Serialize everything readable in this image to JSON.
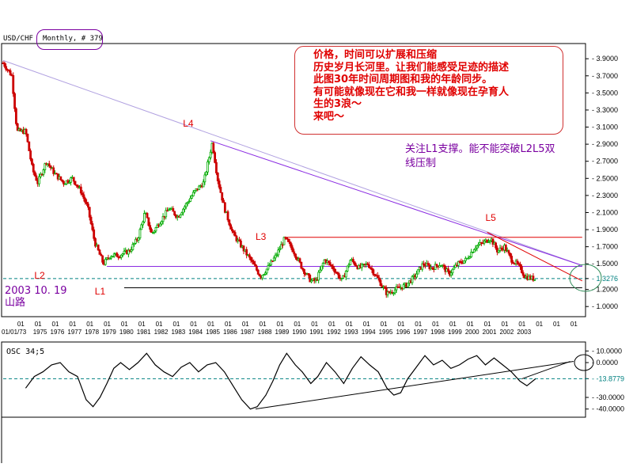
{
  "header": {
    "symbol": "USD/CHF",
    "period": "Monthly, # 379"
  },
  "annotations": {
    "note": "价格，时间可以扩展和压缩\n历史岁月长河里。让我们能感受足迹的描述\n此图30年时间周期图和我的年龄同步。\n有可能就像现在它和我一样就像现在孕育人\n生的3浪～\n来吧～",
    "l1_note": "关注L1支撑。能不能突破L2L5双\n线压制",
    "date_note": "2003 10. 19\n山路",
    "line_labels": [
      "L4",
      "L3",
      "L2",
      "L1",
      "L5"
    ]
  },
  "colors": {
    "candle_up": "#00aa00",
    "candle_down": "#cc0000",
    "trend_line": "#8a2be2",
    "support_line": "#000000",
    "resist_line": "#e00000",
    "dashed_line": "#008080",
    "note_text": "#e00000",
    "purple_text": "#7a00a0",
    "circle": "#2e8b57"
  },
  "chart_data": [
    {
      "type": "candlestick",
      "title": "USD/CHF Monthly",
      "x_first_label": "01/01/73",
      "x_tick_prefix": "01",
      "x_years": [
        "1975",
        "1976",
        "1977",
        "1978",
        "1979",
        "1980",
        "1981",
        "1982",
        "1983",
        "1984",
        "1985",
        "1986",
        "1987",
        "1988",
        "1989",
        "1990",
        "1991",
        "1992",
        "1993",
        "1994",
        "1995",
        "1996",
        "1997",
        "1998",
        "1999",
        "2000",
        "2001",
        "2002",
        "2003"
      ],
      "y_ticks": [
        "3.9000",
        "3.7000",
        "3.5000",
        "3.3000",
        "3.1000",
        "2.9000",
        "2.7000",
        "2.5000",
        "2.3000",
        "2.1000",
        "1.9000",
        "1.7000",
        "1.5000",
        "1.3276",
        "1.2000",
        "1.0000"
      ],
      "ylim": [
        0.9,
        4.05
      ],
      "current_price": "1.3276",
      "price_path": [
        [
          1973.0,
          3.85
        ],
        [
          1973.5,
          3.7
        ],
        [
          1973.8,
          3.05
        ],
        [
          1974.3,
          3.05
        ],
        [
          1974.7,
          2.6
        ],
        [
          1975.0,
          2.45
        ],
        [
          1975.5,
          2.7
        ],
        [
          1976.0,
          2.55
        ],
        [
          1976.5,
          2.45
        ],
        [
          1977.0,
          2.5
        ],
        [
          1977.5,
          2.35
        ],
        [
          1977.9,
          2.15
        ],
        [
          1978.3,
          1.75
        ],
        [
          1978.8,
          1.5
        ],
        [
          1979.2,
          1.6
        ],
        [
          1979.7,
          1.6
        ],
        [
          1980.3,
          1.65
        ],
        [
          1980.8,
          1.8
        ],
        [
          1981.2,
          2.1
        ],
        [
          1981.6,
          1.85
        ],
        [
          1982.1,
          2.0
        ],
        [
          1982.6,
          2.15
        ],
        [
          1983.1,
          2.05
        ],
        [
          1983.6,
          2.2
        ],
        [
          1984.1,
          2.35
        ],
        [
          1984.6,
          2.45
        ],
        [
          1985.1,
          2.92
        ],
        [
          1985.4,
          2.5
        ],
        [
          1985.8,
          2.15
        ],
        [
          1986.3,
          1.85
        ],
        [
          1986.8,
          1.7
        ],
        [
          1987.3,
          1.55
        ],
        [
          1987.9,
          1.35
        ],
        [
          1988.3,
          1.45
        ],
        [
          1988.8,
          1.6
        ],
        [
          1989.3,
          1.8
        ],
        [
          1989.8,
          1.65
        ],
        [
          1990.3,
          1.45
        ],
        [
          1990.8,
          1.3
        ],
        [
          1991.1,
          1.3
        ],
        [
          1991.6,
          1.55
        ],
        [
          1992.1,
          1.45
        ],
        [
          1992.6,
          1.3
        ],
        [
          1993.1,
          1.55
        ],
        [
          1993.6,
          1.45
        ],
        [
          1994.1,
          1.5
        ],
        [
          1994.6,
          1.35
        ],
        [
          1995.2,
          1.15
        ],
        [
          1995.7,
          1.2
        ],
        [
          1996.3,
          1.25
        ],
        [
          1996.8,
          1.35
        ],
        [
          1997.3,
          1.5
        ],
        [
          1997.8,
          1.45
        ],
        [
          1998.3,
          1.5
        ],
        [
          1998.8,
          1.38
        ],
        [
          1999.3,
          1.5
        ],
        [
          1999.8,
          1.55
        ],
        [
          2000.3,
          1.7
        ],
        [
          2000.8,
          1.75
        ],
        [
          2001.2,
          1.8
        ],
        [
          2001.6,
          1.65
        ],
        [
          2002.0,
          1.7
        ],
        [
          2002.4,
          1.55
        ],
        [
          2002.8,
          1.48
        ],
        [
          2003.2,
          1.35
        ],
        [
          2003.8,
          1.32
        ]
      ],
      "lines": [
        {
          "name": "L4",
          "type": "trend",
          "from": [
            1973.0,
            3.88
          ],
          "to": [
            2006.5,
            1.48
          ]
        },
        {
          "name": "L4b",
          "type": "trend",
          "from": [
            1985.0,
            2.94
          ],
          "to": [
            2006.5,
            1.48
          ]
        },
        {
          "name": "L3",
          "type": "horizontal",
          "y": 1.81,
          "from_x": 1989.3,
          "to_x": 2006.5
        },
        {
          "name": "L2",
          "type": "horizontal",
          "y": 1.47,
          "from_x": 1979.0,
          "to_x": 2006.5
        },
        {
          "name": "L1",
          "type": "horizontal",
          "y": 1.22,
          "from_x": 1980.0,
          "to_x": 2006.5
        },
        {
          "name": "L5",
          "type": "trend",
          "from": [
            2001.0,
            1.87
          ],
          "to": [
            2006.5,
            1.3
          ]
        }
      ]
    },
    {
      "type": "line",
      "title": "OSC 34,5",
      "name": "OSC 34;5",
      "y_ticks": [
        "10.0000",
        "0.0000",
        "-13.8779",
        "-30.0000",
        "-40.0000"
      ],
      "ylim": [
        -45,
        15
      ],
      "current_value": "-13.8779",
      "points": [
        [
          1974.3,
          -22
        ],
        [
          1974.8,
          -12
        ],
        [
          1975.3,
          -8
        ],
        [
          1975.8,
          -2
        ],
        [
          1976.3,
          0
        ],
        [
          1976.8,
          -8
        ],
        [
          1977.3,
          -12
        ],
        [
          1977.8,
          -32
        ],
        [
          1978.2,
          -38
        ],
        [
          1978.6,
          -30
        ],
        [
          1979.0,
          -18
        ],
        [
          1979.4,
          -5
        ],
        [
          1979.8,
          0
        ],
        [
          1980.3,
          -6
        ],
        [
          1980.8,
          0
        ],
        [
          1981.3,
          8
        ],
        [
          1981.8,
          -2
        ],
        [
          1982.3,
          -8
        ],
        [
          1982.8,
          -12
        ],
        [
          1983.3,
          -4
        ],
        [
          1983.8,
          0
        ],
        [
          1984.3,
          -8
        ],
        [
          1984.8,
          -2
        ],
        [
          1985.3,
          0
        ],
        [
          1985.8,
          -8
        ],
        [
          1986.3,
          -20
        ],
        [
          1986.8,
          -32
        ],
        [
          1987.3,
          -40
        ],
        [
          1987.7,
          -38
        ],
        [
          1988.2,
          -28
        ],
        [
          1988.6,
          -16
        ],
        [
          1989.0,
          -2
        ],
        [
          1989.4,
          8
        ],
        [
          1989.9,
          -2
        ],
        [
          1990.3,
          -8
        ],
        [
          1990.8,
          -18
        ],
        [
          1991.2,
          -12
        ],
        [
          1991.7,
          0
        ],
        [
          1992.2,
          -8
        ],
        [
          1992.7,
          -18
        ],
        [
          1993.2,
          -5
        ],
        [
          1993.7,
          5
        ],
        [
          1994.2,
          -2
        ],
        [
          1994.7,
          -8
        ],
        [
          1995.2,
          -22
        ],
        [
          1995.6,
          -28
        ],
        [
          1996.0,
          -26
        ],
        [
          1996.4,
          -14
        ],
        [
          1996.9,
          -4
        ],
        [
          1997.4,
          6
        ],
        [
          1997.9,
          -2
        ],
        [
          1998.4,
          2
        ],
        [
          1998.9,
          -5
        ],
        [
          1999.4,
          -2
        ],
        [
          1999.9,
          3
        ],
        [
          2000.4,
          6
        ],
        [
          2000.9,
          -2
        ],
        [
          2001.4,
          4
        ],
        [
          2001.9,
          -2
        ],
        [
          2002.4,
          -8
        ],
        [
          2002.9,
          -16
        ],
        [
          2003.3,
          -20
        ],
        [
          2003.8,
          -14
        ]
      ],
      "trendlines": [
        {
          "from": [
            1987.6,
            -40
          ],
          "to": [
            2006.0,
            1
          ]
        },
        {
          "from": [
            2003.0,
            -14
          ],
          "to": [
            2005.8,
            1
          ]
        }
      ]
    }
  ]
}
